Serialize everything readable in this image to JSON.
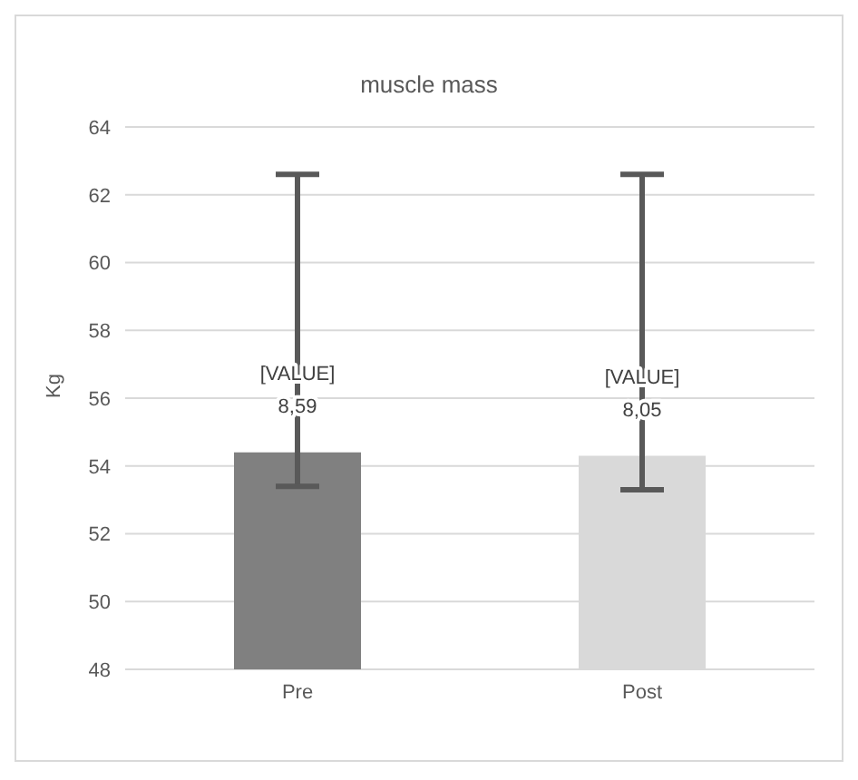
{
  "chart_data": {
    "type": "bar",
    "title": "muscle mass",
    "ylabel": "Kg",
    "categories": [
      "Pre",
      "Post"
    ],
    "values": [
      54.4,
      54.3
    ],
    "colors": [
      "#808080",
      "#d9d9d9"
    ],
    "errors": [
      [
        53.4,
        62.6
      ],
      [
        53.3,
        62.6
      ]
    ],
    "annotations": [
      {
        "text": "[VALUE] 8,59",
        "x": "Pre"
      },
      {
        "text": "[VALUE] 8,05",
        "x": "Post"
      }
    ],
    "ylim": [
      48,
      64
    ],
    "yticks": [
      48,
      50,
      52,
      54,
      56,
      58,
      60,
      62,
      64
    ],
    "grid": "y"
  }
}
